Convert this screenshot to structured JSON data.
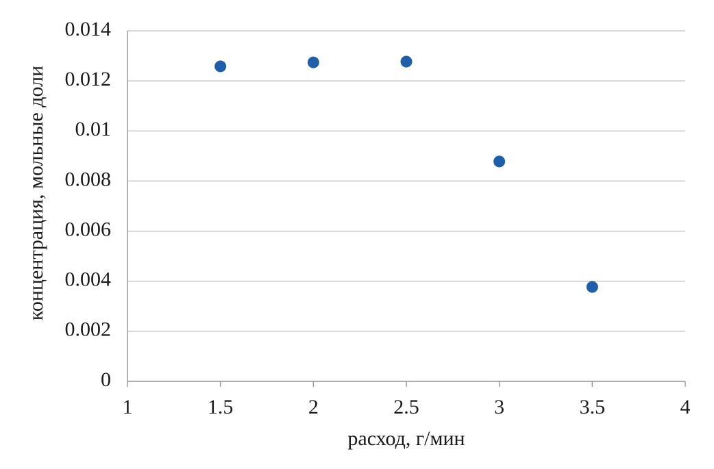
{
  "chart_data": {
    "type": "scatter",
    "x_label": "расход, г/мин",
    "y_label": "концентрация, мольные доли",
    "x": [
      1.5,
      2,
      2.5,
      3,
      3.5
    ],
    "values": [
      0.01258,
      0.01274,
      0.01277,
      0.00878,
      0.00377
    ],
    "color": "#1f5ea8",
    "xlim": [
      1,
      4
    ],
    "xticks": [
      1,
      1.5,
      2,
      2.5,
      3,
      3.5,
      4
    ],
    "ylim": [
      0,
      0.014
    ],
    "yticks": [
      0,
      0.002,
      0.004,
      0.006,
      0.008,
      0.01,
      0.012,
      0.014
    ],
    "grid": true
  }
}
